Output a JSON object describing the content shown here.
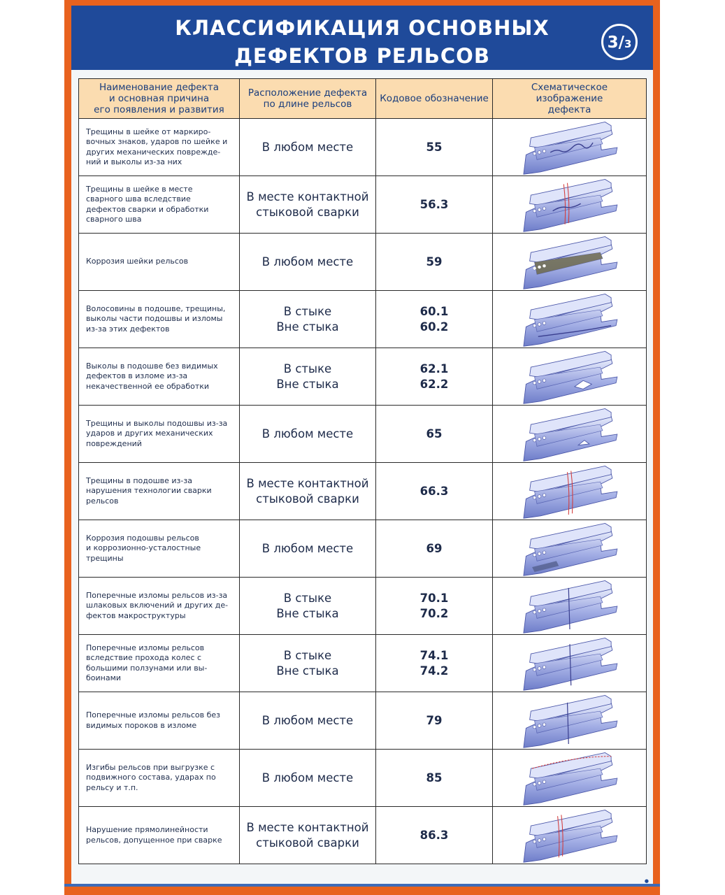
{
  "header": {
    "title_line1": "КЛАССИФИКАЦИЯ ОСНОВНЫХ",
    "title_line2": "ДЕФЕКТОВ РЕЛЬСОВ",
    "badge_main": "3/",
    "badge_sub": "3"
  },
  "table": {
    "headers": {
      "name": "Наименование дефекта\nи основная причина\nего появления и развития",
      "location": "Расположение дефекта\nпо длине рельсов",
      "code": "Кодовое обозначение",
      "image": "Схематическое\nизображение\nдефекта"
    },
    "rows": [
      {
        "name": "Трещины в шейке от маркиро-\nвочных знаков, ударов по шейке и\nдругих механических поврежде-\nний и выколы из-за них",
        "location": "В любом месте",
        "code": "55",
        "icon": "rail-web-crack-icon"
      },
      {
        "name": "Трещины в шейке в месте\nсварного шва вследствие\nдефектов сварки и обработки\nсварного шва",
        "location": "В месте контактной\nстыковой сварки",
        "code": "56.3",
        "icon": "rail-weld-web-crack-icon"
      },
      {
        "name": "Коррозия шейки рельсов",
        "location": "В любом месте",
        "code": "59",
        "icon": "rail-web-corrosion-icon"
      },
      {
        "name": "Волосовины в подошве, трещины,\nвыколы части подошвы и изломы\nиз-за этих дефектов",
        "location": "В стыке\nВне стыка",
        "code": "60.1\n60.2",
        "icon": "rail-base-seam-icon"
      },
      {
        "name": "Выколы в подошве без видимых\nдефектов в изломе из-за\nнекачественной ее обработки",
        "location": "В стыке\nВне стыка",
        "code": "62.1\n62.2",
        "icon": "rail-base-chip-icon"
      },
      {
        "name": "Трещины и выколы подошвы из-за\nударов и других механических\nповреждений",
        "location": "В любом месте",
        "code": "65",
        "icon": "rail-base-chip-small-icon"
      },
      {
        "name": "Трещины в подошве из-за\nнарушения технологии сварки\nрельсов",
        "location": "В месте контактной\nстыковой сварки",
        "code": "66.3",
        "icon": "rail-weld-base-crack-icon"
      },
      {
        "name": "Коррозия подошвы рельсов\nи коррозионно-усталостные\nтрещины",
        "location": "В любом месте",
        "code": "69",
        "icon": "rail-base-corrosion-icon"
      },
      {
        "name": "Поперечные изломы рельсов из-за\nшлаковых включений и других де-\nфектов макроструктуры",
        "location": "В стыке\nВне стыка",
        "code": "70.1\n70.2",
        "icon": "rail-transverse-break-icon"
      },
      {
        "name": "Поперечные изломы рельсов\nвследствие прохода колес с\nбольшими ползунами или вы-\nбоинами",
        "location": "В стыке\nВне стыка",
        "code": "74.1\n74.2",
        "icon": "rail-transverse-break-wheel-icon"
      },
      {
        "name": "Поперечные изломы рельсов без\nвидимых пороков в изломе",
        "location": "В любом месте",
        "code": "79",
        "icon": "rail-transverse-break-plain-icon"
      },
      {
        "name": "Изгибы рельсов при выгрузке с\nподвижного состава, ударах по\nрельсу и т.п.",
        "location": "В любом месте",
        "code": "85",
        "icon": "rail-bend-icon"
      },
      {
        "name": "Нарушение прямолинейности\nрельсов, допущенное при сварке",
        "location": "В месте контактной\nстыковой сварки",
        "code": "86.3",
        "icon": "rail-weld-bend-icon"
      }
    ]
  }
}
